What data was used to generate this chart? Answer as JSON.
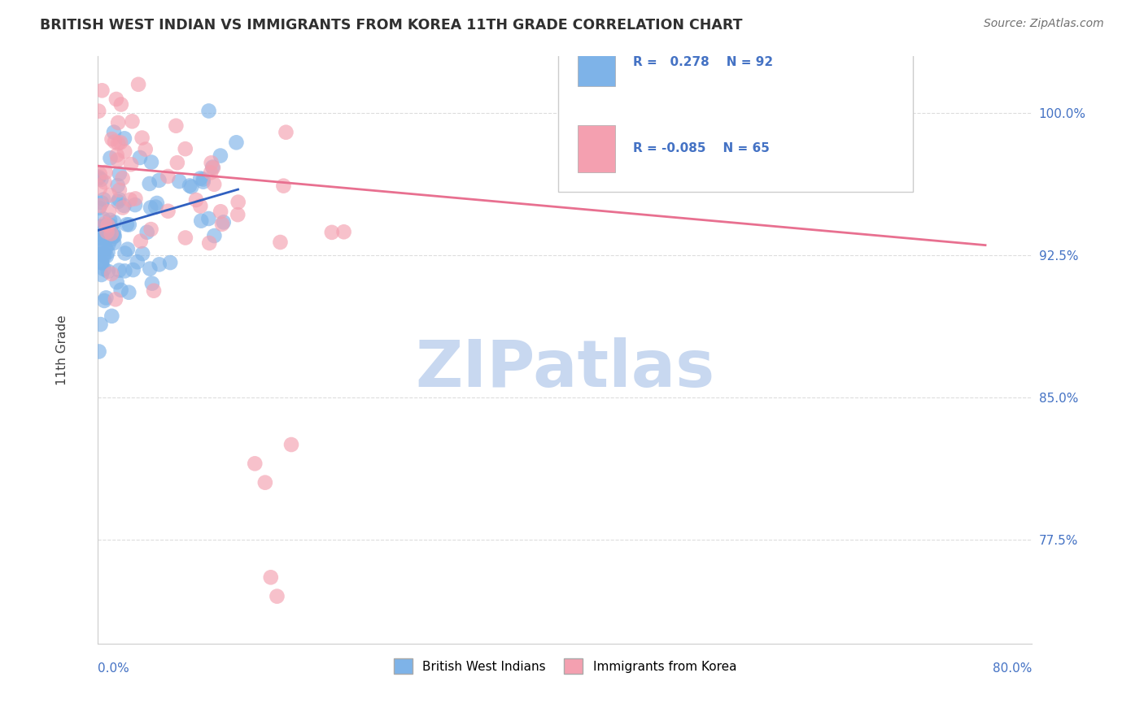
{
  "title": "BRITISH WEST INDIAN VS IMMIGRANTS FROM KOREA 11TH GRADE CORRELATION CHART",
  "source": "Source: ZipAtlas.com",
  "xlabel_bottom_left": "0.0%",
  "xlabel_bottom_right": "80.0%",
  "ylabel_label": "11th Grade",
  "right_yticks": [
    100.0,
    92.5,
    85.0,
    77.5
  ],
  "right_ytick_labels": [
    "100.0%",
    "92.5%",
    "85.0%",
    "77.5%"
  ],
  "blue_R": 0.278,
  "blue_N": 92,
  "pink_R": -0.085,
  "pink_N": 65,
  "blue_color": "#7EB3E8",
  "pink_color": "#F4A0B0",
  "blue_line_color": "#3060C0",
  "pink_line_color": "#E87090",
  "legend_blue_label": "British West Indians",
  "legend_pink_label": "Immigrants from Korea",
  "watermark": "ZIPatlas",
  "watermark_color": "#C8D8F0",
  "background_color": "#FFFFFF",
  "grid_color": "#DDDDDD",
  "title_color": "#303030",
  "source_color": "#707070"
}
